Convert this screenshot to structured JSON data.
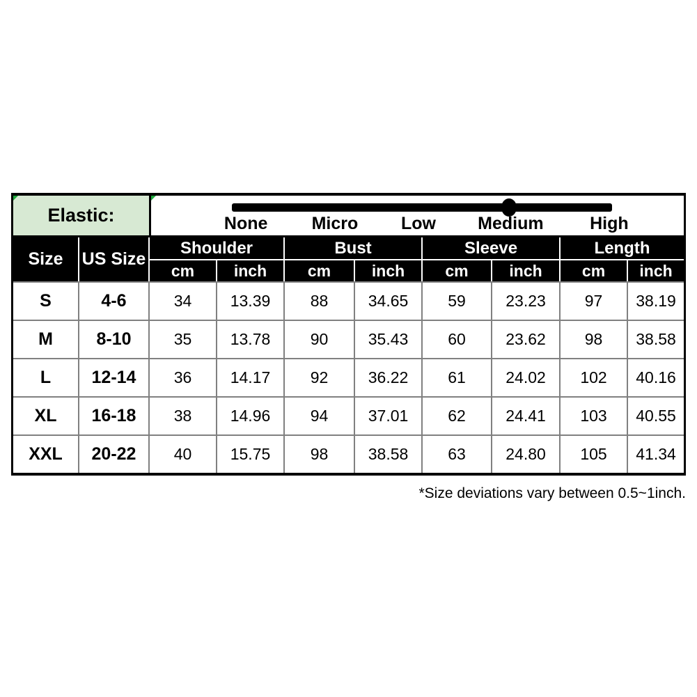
{
  "elastic": {
    "label": "Elastic:",
    "levels": [
      "None",
      "Micro",
      "Low",
      "Medium",
      "High"
    ],
    "selected_level": "Medium"
  },
  "headers": {
    "size": "Size",
    "us_size": "US Size",
    "groups": [
      "Shoulder",
      "Bust",
      "Sleeve",
      "Length"
    ],
    "units": [
      "cm",
      "inch"
    ]
  },
  "footnote": "*Size deviations vary between 0.5~1inch.",
  "colors": {
    "elastic_cell_bg": "#d7e9d3",
    "corner_flag_green": "#1fa83c",
    "header_bg": "#000000",
    "header_text": "#ffffff",
    "grid_line": "#808080",
    "slider_black": "#000000"
  },
  "chart_data": {
    "type": "table",
    "columns": [
      "Size",
      "US Size",
      "Shoulder cm",
      "Shoulder inch",
      "Bust cm",
      "Bust inch",
      "Sleeve cm",
      "Sleeve inch",
      "Length cm",
      "Length inch"
    ],
    "rows": [
      [
        "S",
        "4-6",
        "34",
        "13.39",
        "88",
        "34.65",
        "59",
        "23.23",
        "97",
        "38.19"
      ],
      [
        "M",
        "8-10",
        "35",
        "13.78",
        "90",
        "35.43",
        "60",
        "23.62",
        "98",
        "38.58"
      ],
      [
        "L",
        "12-14",
        "36",
        "14.17",
        "92",
        "36.22",
        "61",
        "24.02",
        "102",
        "40.16"
      ],
      [
        "XL",
        "16-18",
        "38",
        "14.96",
        "94",
        "37.01",
        "62",
        "24.41",
        "103",
        "40.55"
      ],
      [
        "XXL",
        "20-22",
        "40",
        "15.75",
        "98",
        "38.58",
        "63",
        "24.80",
        "105",
        "41.34"
      ]
    ],
    "elastic_scale": {
      "levels": [
        "None",
        "Micro",
        "Low",
        "Medium",
        "High"
      ],
      "selected": "Medium"
    }
  }
}
